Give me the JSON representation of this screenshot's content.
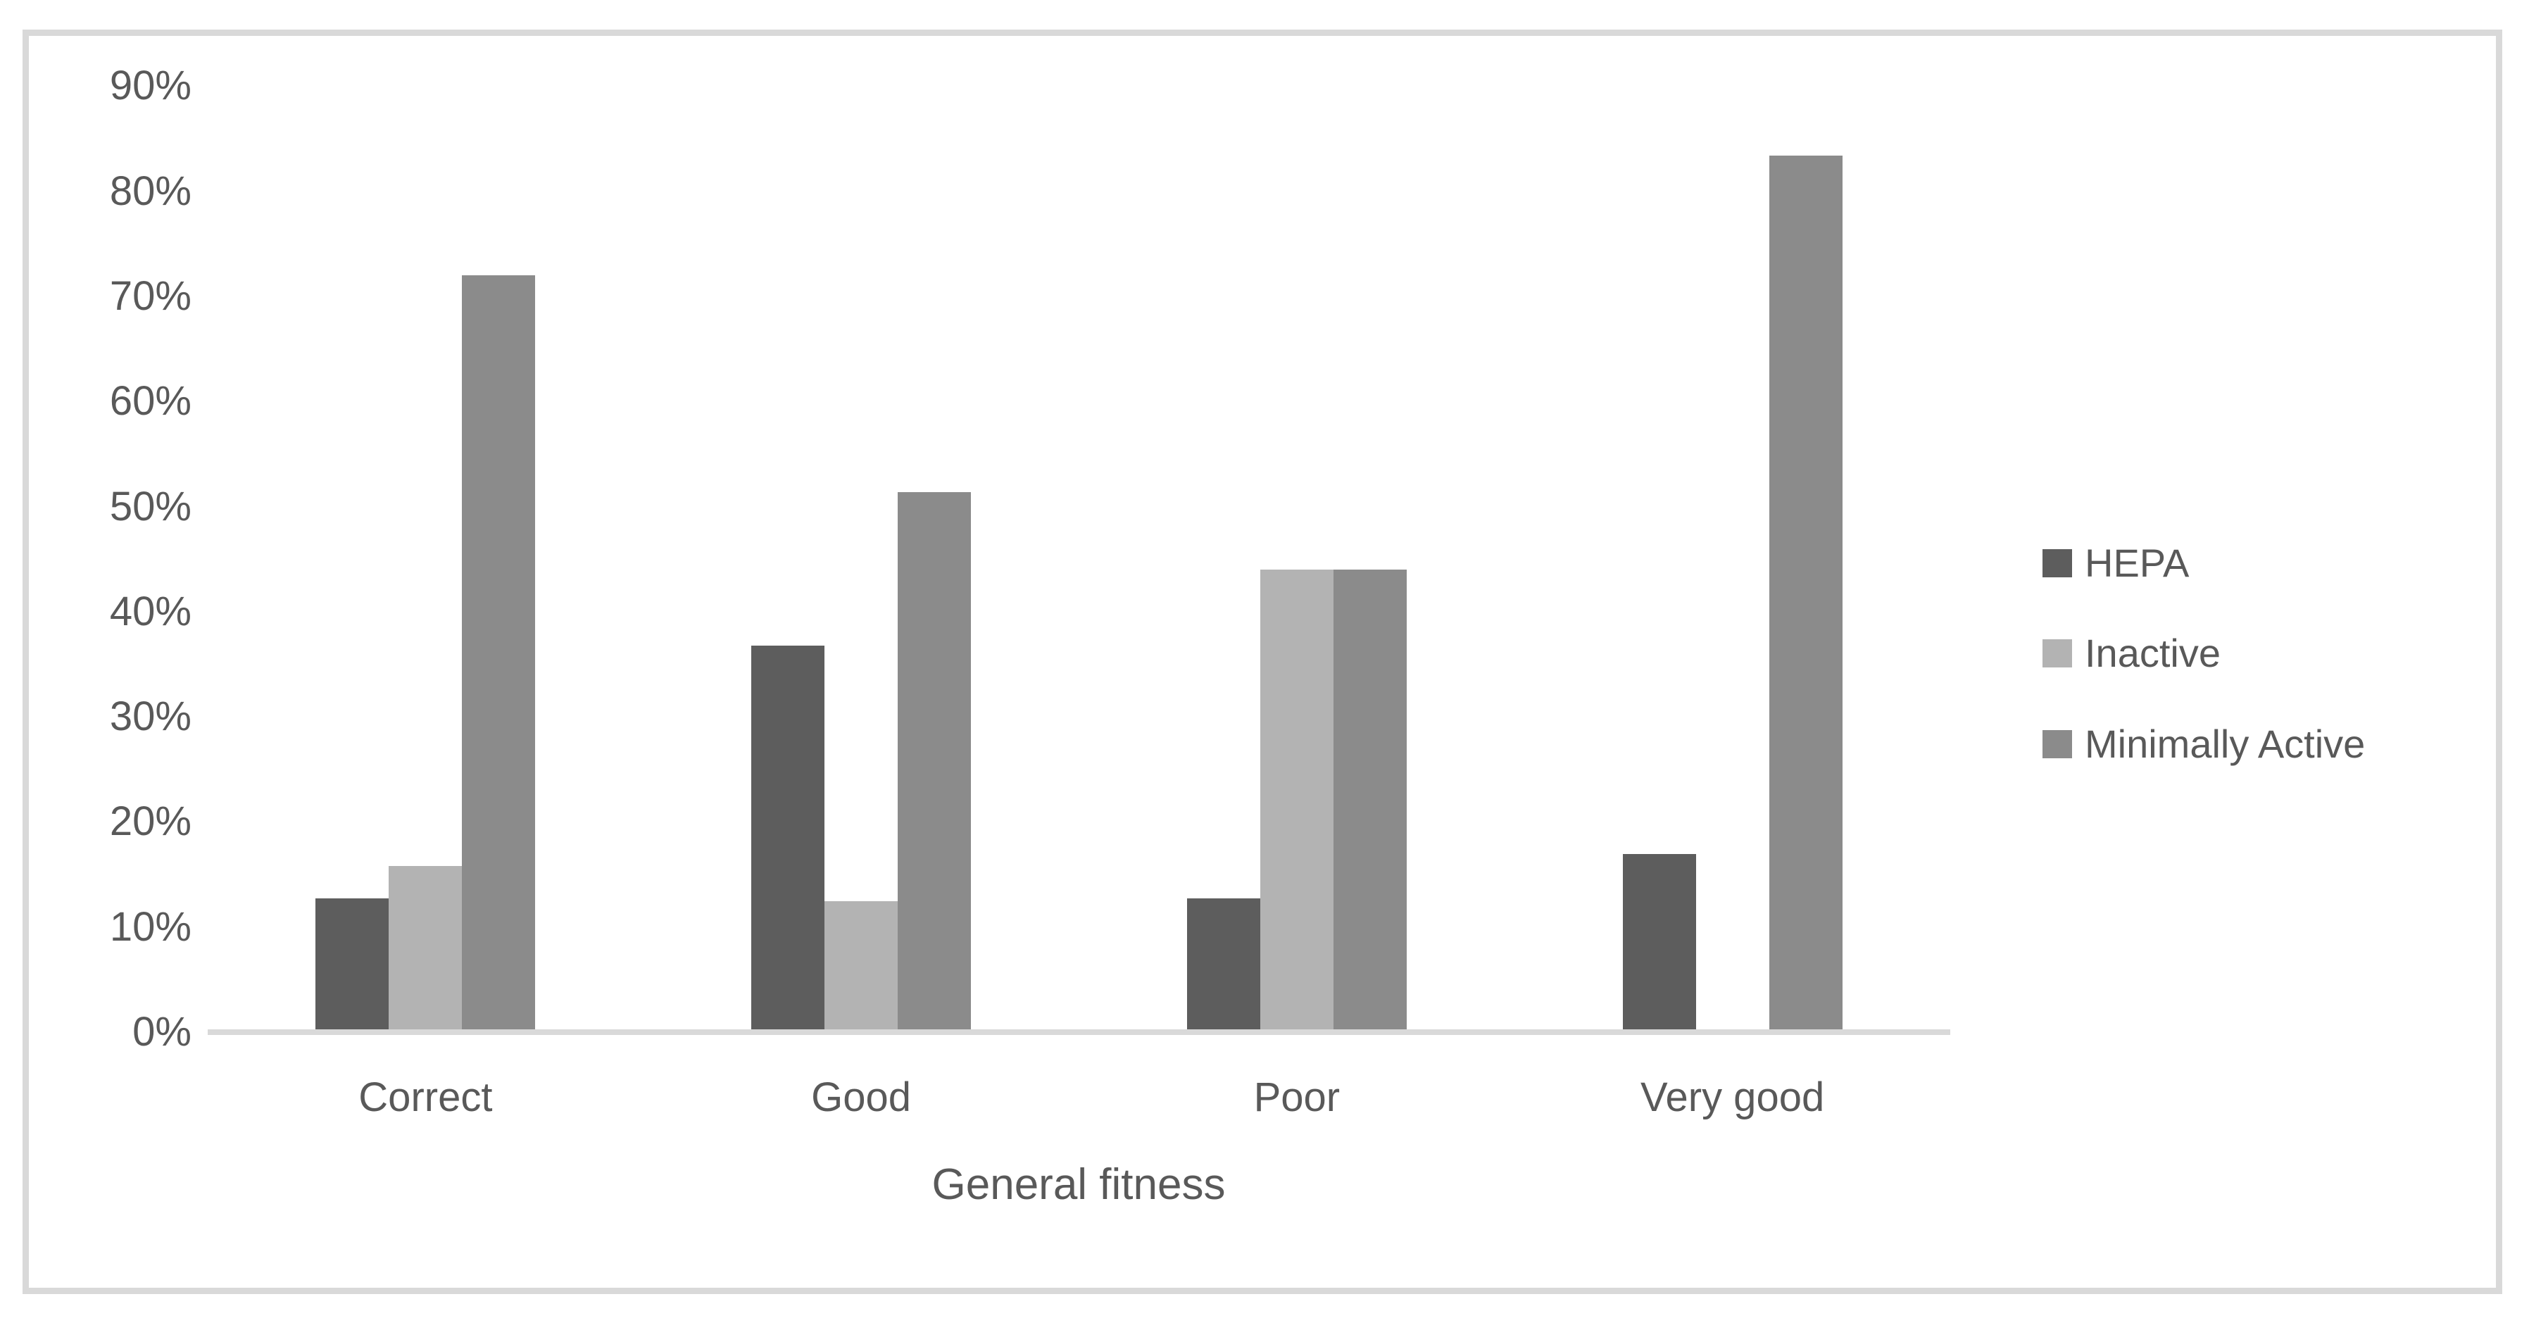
{
  "chart_data": {
    "type": "bar",
    "title": "",
    "xlabel": "General fitness",
    "ylabel": "",
    "categories": [
      "Correct",
      "Good",
      "Poor",
      "Very good"
    ],
    "series": [
      {
        "name": "HEPA",
        "color": "#5d5d5d",
        "values": [
          12.5,
          36.6,
          12.5,
          16.7
        ]
      },
      {
        "name": "Inactive",
        "color": "#b3b3b3",
        "values": [
          15.6,
          12.2,
          43.8,
          0
        ]
      },
      {
        "name": "Minimally Active",
        "color": "#8b8b8b",
        "values": [
          71.9,
          51.2,
          43.8,
          83.3
        ]
      }
    ],
    "y_ticks": [
      "0%",
      "10%",
      "20%",
      "30%",
      "40%",
      "50%",
      "60%",
      "70%",
      "80%",
      "90%"
    ],
    "ylim": [
      0,
      90
    ],
    "grid": false,
    "legend_position": "right",
    "axis_color": "#d9d9d9",
    "text_color": "#595959"
  }
}
